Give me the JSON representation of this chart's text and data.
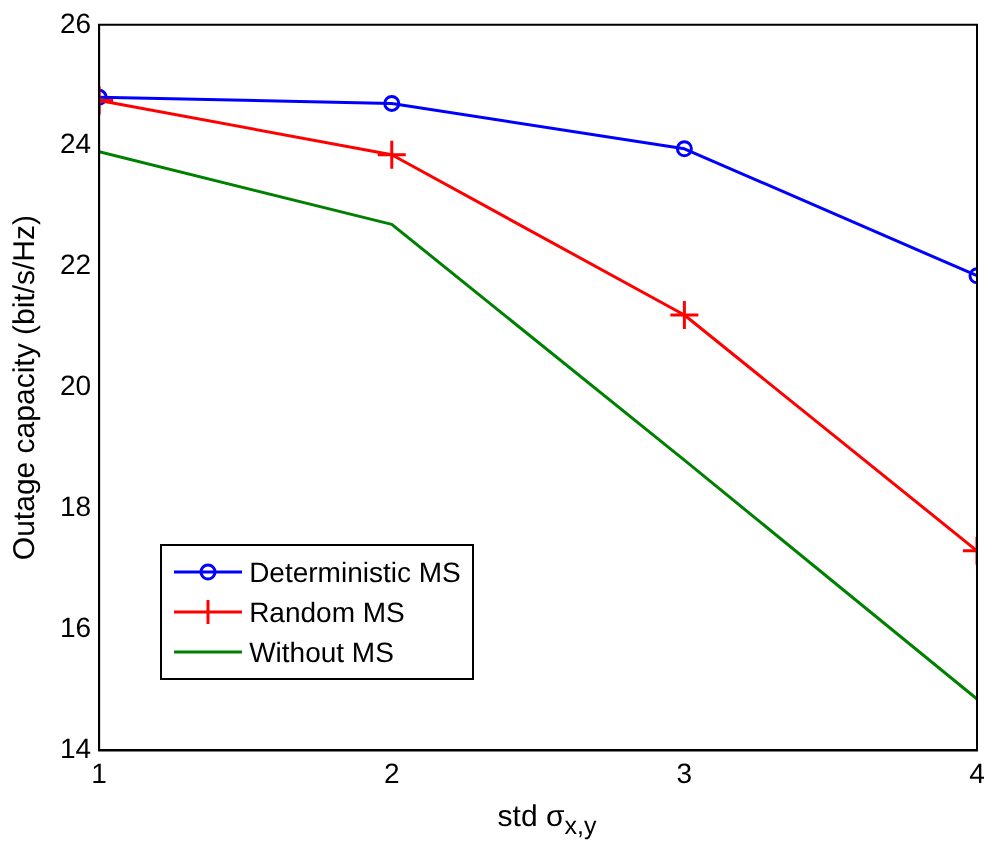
{
  "chart_data": {
    "type": "line",
    "xlabel": "std σ$_{x,y}$",
    "ylabel": "Outage capacity (bit/s/Hz)",
    "x": [
      1,
      2,
      3,
      4
    ],
    "xlim": [
      1,
      4
    ],
    "xticks": [
      1,
      2,
      3,
      4
    ],
    "ylim": [
      14,
      26
    ],
    "yticks": [
      14,
      16,
      18,
      20,
      22,
      24,
      26
    ],
    "grid": false,
    "legend": "bottom left",
    "series": [
      {
        "name": "Deterministic MS",
        "color": "#0000ff",
        "marker": "circle",
        "values": [
          24.8,
          24.7,
          23.95,
          21.85
        ]
      },
      {
        "name": "Random MS",
        "color": "#ff0000",
        "marker": "cross",
        "values": [
          24.75,
          23.85,
          21.2,
          17.3
        ]
      },
      {
        "name": "Without MS",
        "color": "#008000",
        "marker": "none",
        "values": [
          23.9,
          22.7,
          18.8,
          14.85
        ]
      }
    ]
  }
}
